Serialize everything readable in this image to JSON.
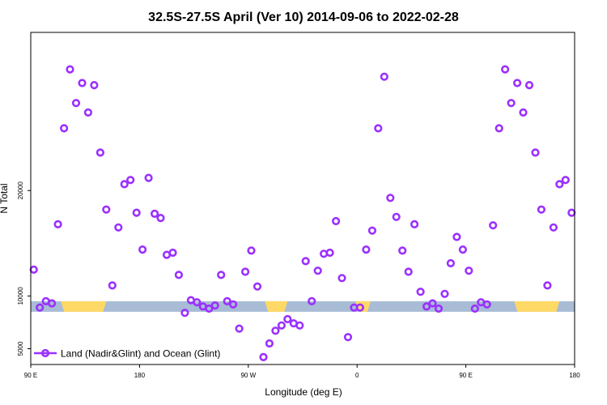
{
  "chart_data": {
    "type": "scatter",
    "title": "32.5S-27.5S April (Ver 10)   2014-09-06 to 2022-02-28",
    "xlabel": "Longitude (deg E)",
    "ylabel": "N Total",
    "x_ticks": [
      "90 E",
      "180",
      "90 W",
      "0",
      "90 E",
      "180"
    ],
    "y_ticks": [
      "5000",
      "10000",
      "20000"
    ],
    "xlim": [
      90,
      450
    ],
    "ylim": [
      3500,
      35000
    ],
    "grid": false,
    "legend_position": "bottom-left",
    "series": [
      {
        "name": "Land (Nadir&Glint) and Ocean (Glint)",
        "color": "#9b30ff",
        "x": [
          92,
          96,
          100,
          104,
          108,
          112,
          116,
          120,
          124,
          128,
          132,
          136,
          140,
          144,
          148,
          152,
          156,
          160,
          164,
          168,
          172,
          176,
          180,
          184,
          188,
          192,
          196,
          200,
          204,
          208,
          212,
          216,
          220,
          224,
          228,
          232,
          236,
          240,
          244,
          248,
          252,
          256,
          260,
          264,
          268,
          272,
          276,
          280,
          284,
          288,
          292,
          296,
          300,
          304,
          308,
          312,
          316,
          320,
          324,
          328,
          332,
          336,
          340,
          344,
          348,
          352,
          356,
          360,
          364,
          368,
          372,
          376,
          380,
          384,
          388,
          392,
          396,
          400,
          404,
          408,
          412,
          416,
          420,
          424,
          428,
          432,
          436,
          440,
          444,
          448
        ],
        "y": [
          12500,
          8900,
          9500,
          9300,
          16800,
          25900,
          31500,
          28300,
          30200,
          27400,
          30000,
          23600,
          18200,
          11000,
          16500,
          20600,
          21000,
          17900,
          14400,
          21200,
          17800,
          17400,
          13900,
          14100,
          12000,
          8400,
          9600,
          9400,
          9000,
          8800,
          9100,
          12000,
          9500,
          9200,
          6900,
          12300,
          14300,
          10900,
          4200,
          5500,
          6700,
          7200,
          7800,
          7400,
          7200,
          13300,
          9500,
          12400,
          14000,
          14100,
          17100,
          11700,
          6100,
          8900,
          8900,
          14400,
          16200,
          25900,
          30800,
          19300,
          17500,
          14300,
          12300,
          16800,
          10400,
          9000,
          9300,
          8800,
          10200,
          13100,
          15600,
          14400,
          12400,
          8800,
          9400,
          9200,
          16700,
          25900,
          31500,
          28300,
          30200,
          27400,
          30000,
          23600,
          18200,
          11000,
          16500,
          20600,
          21000,
          17900
        ]
      }
    ],
    "background_bands": {
      "y_range": [
        8500,
        9500
      ],
      "ocean_color": "#a8bcd6",
      "land_color": "#ffd966",
      "land_x_ranges": [
        [
          110,
          140
        ],
        [
          245,
          260
        ],
        [
          305,
          315
        ],
        [
          410,
          440
        ]
      ]
    }
  }
}
